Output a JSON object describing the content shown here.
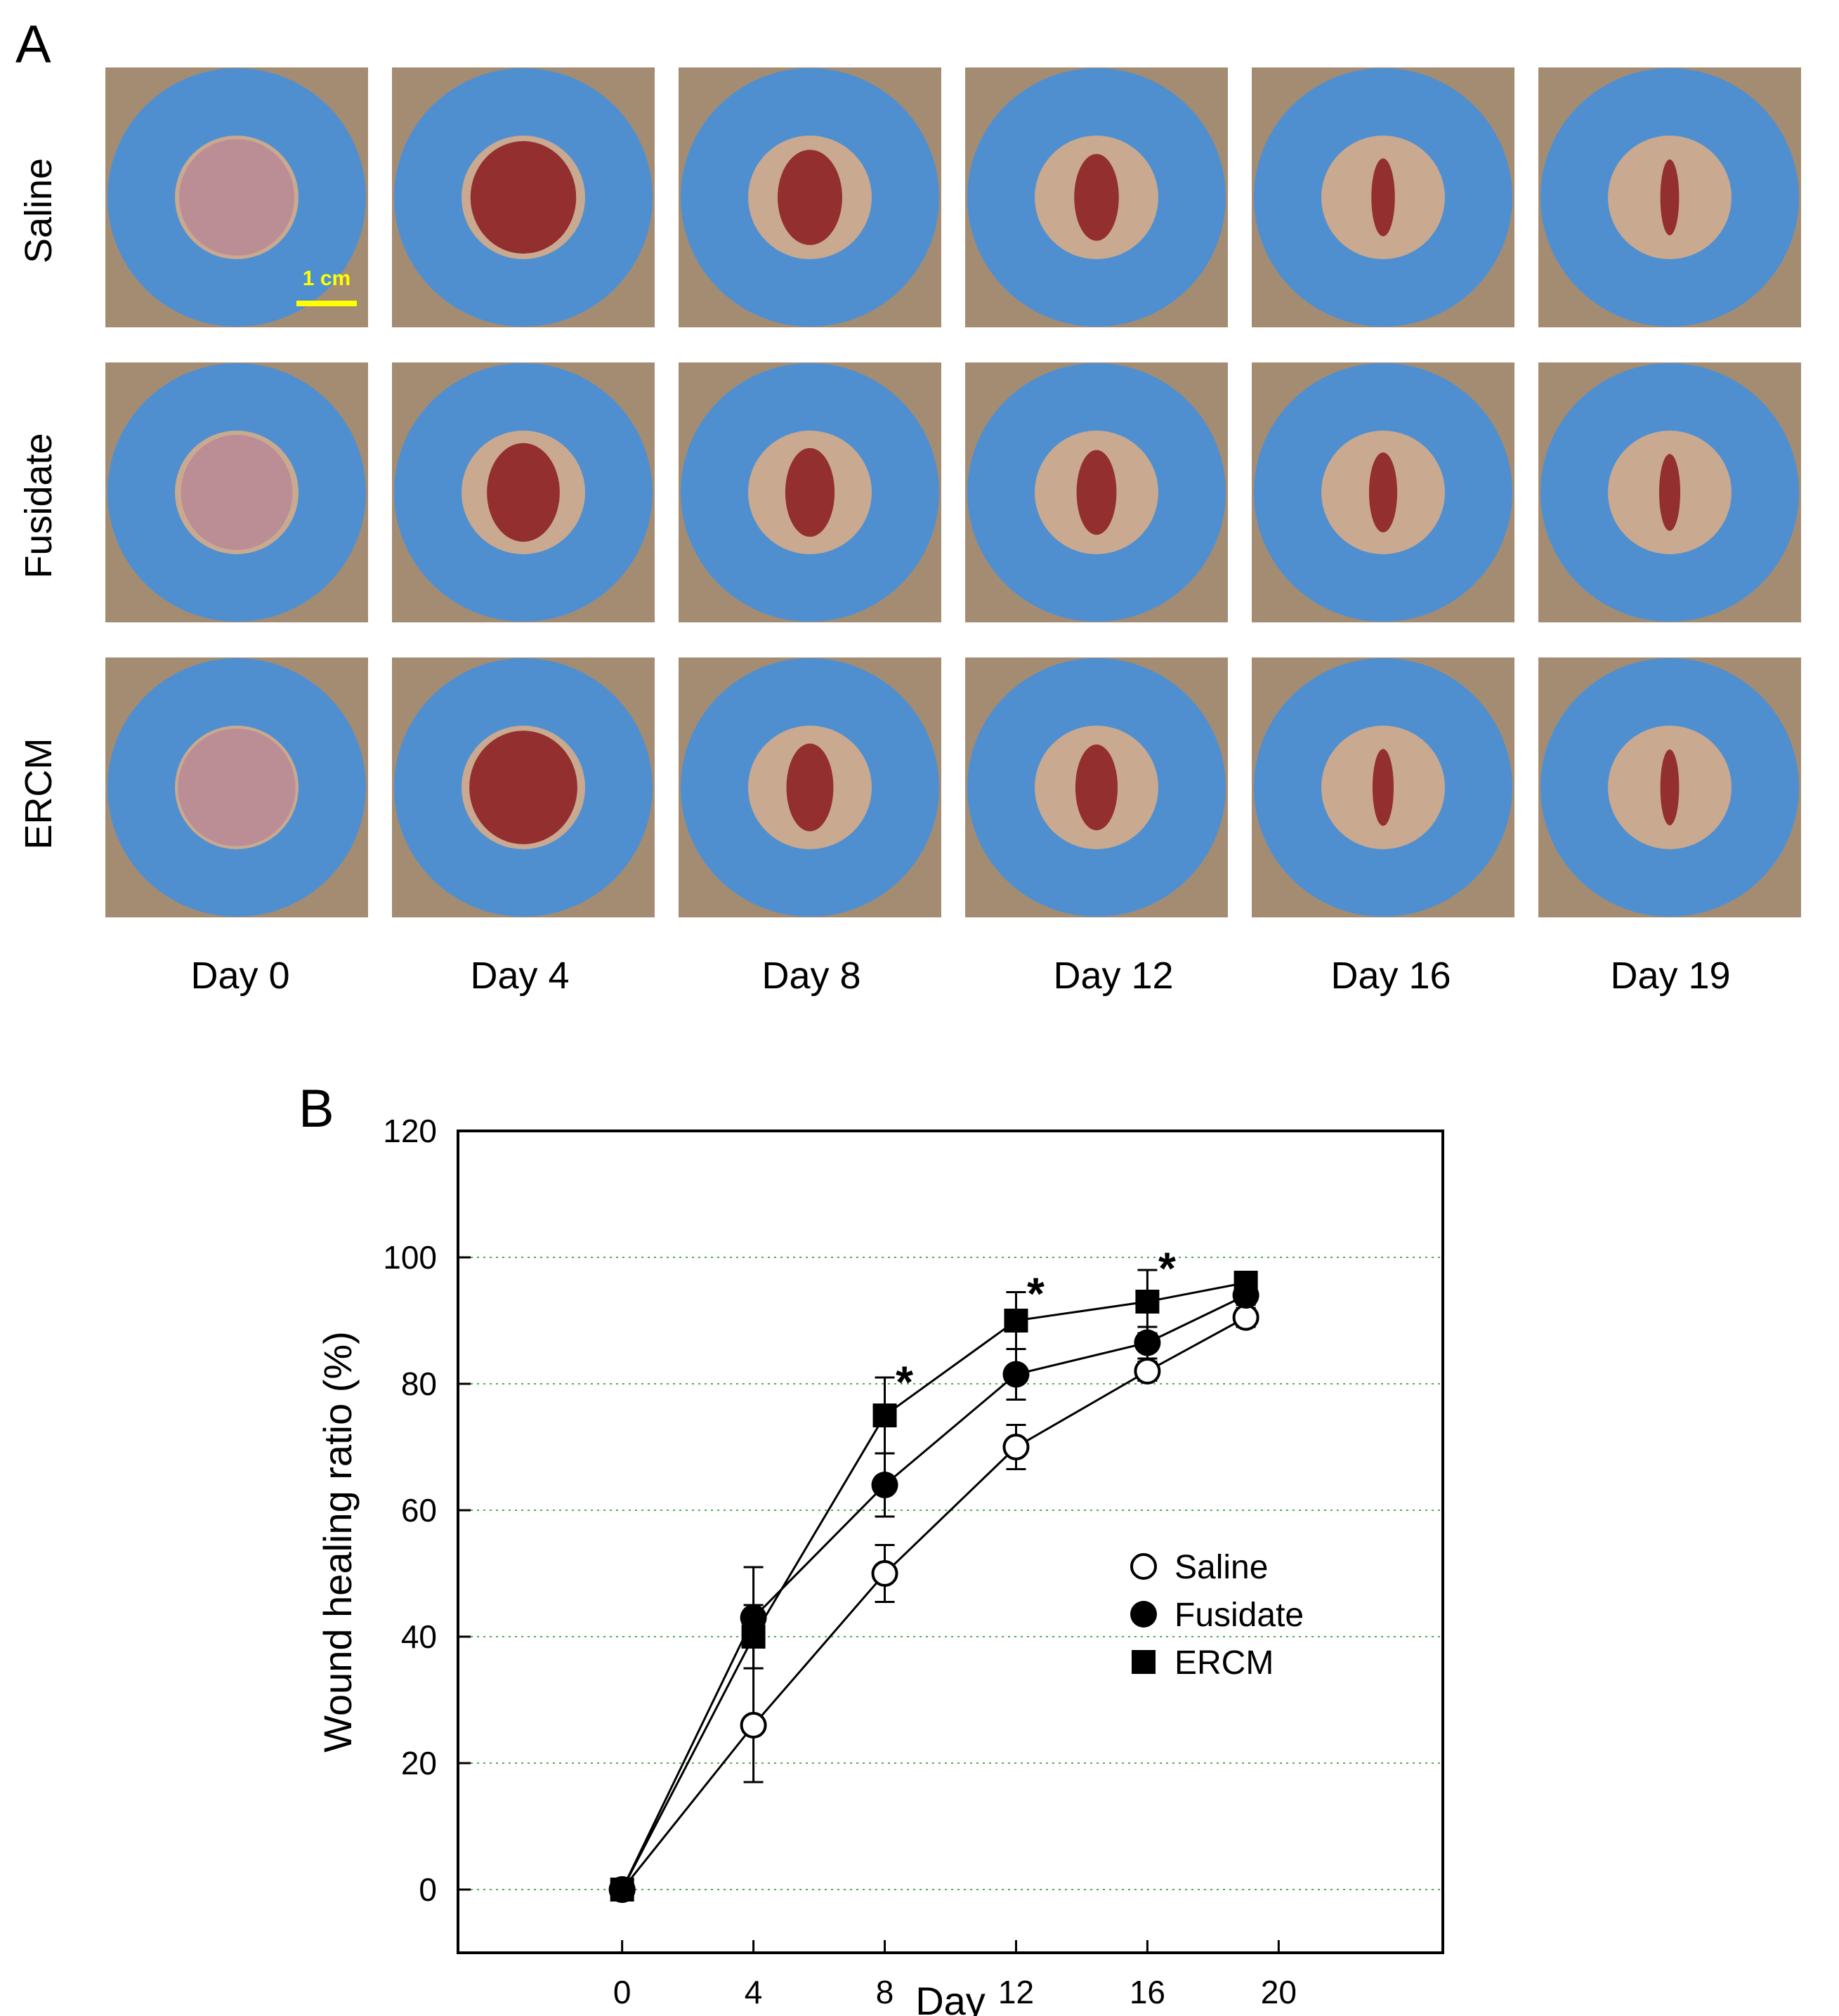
{
  "panels": {
    "a": "A",
    "b": "B"
  },
  "photo_grid": {
    "rows": [
      {
        "label": "Saline",
        "wound_sizes": [
          0.98,
          0.9,
          0.55,
          0.38,
          0.2,
          0.16
        ]
      },
      {
        "label": "Fusidate",
        "wound_sizes": [
          0.95,
          0.62,
          0.42,
          0.34,
          0.24,
          0.18
        ]
      },
      {
        "label": "ERCM",
        "wound_sizes": [
          1.0,
          0.92,
          0.4,
          0.36,
          0.18,
          0.16
        ]
      }
    ],
    "columns": [
      "Day 0",
      "Day 4",
      "Day 8",
      "Day 12",
      "Day 16",
      "Day 19"
    ],
    "scale_bar": "1 cm",
    "colors": {
      "ring": "#4f8fd0",
      "skin": "#c9a98f",
      "wound": "#8b1a1f",
      "scale_bar": "#ffff00"
    }
  },
  "chart_data": {
    "type": "line",
    "xlabel": "Day",
    "ylabel": "Wound healing ratio (%)",
    "xlim": [
      -5,
      25
    ],
    "ylim": [
      -10,
      120
    ],
    "xticks": [
      0,
      4,
      8,
      12,
      16,
      20
    ],
    "yticks": [
      0,
      20,
      40,
      60,
      80,
      100,
      120
    ],
    "grid": "horizontal dotted, light green",
    "legend_position": "center-right",
    "x": [
      0,
      4,
      8,
      12,
      16,
      19
    ],
    "series": [
      {
        "name": "Saline",
        "marker": "open-circle",
        "values": [
          0,
          26,
          50,
          70,
          82,
          90.5
        ],
        "errors": [
          0,
          9,
          4.5,
          3.5,
          1.5,
          1.5
        ]
      },
      {
        "name": "Fusidate",
        "marker": "filled-circle",
        "values": [
          0,
          43,
          64,
          81.5,
          86.5,
          94
        ],
        "errors": [
          0,
          8,
          5,
          4,
          2.5,
          1.5
        ]
      },
      {
        "name": "ERCM",
        "marker": "filled-square",
        "values": [
          0,
          40,
          75,
          90,
          93,
          96
        ],
        "errors": [
          0,
          5,
          6,
          4.5,
          5,
          1
        ]
      }
    ],
    "annotations": [
      {
        "text": "*",
        "x": 8,
        "y": 80.5
      },
      {
        "text": "*",
        "x": 12,
        "y": 94.5
      },
      {
        "text": "*",
        "x": 16,
        "y": 98.5
      }
    ],
    "grid_color": "#4caf50"
  }
}
